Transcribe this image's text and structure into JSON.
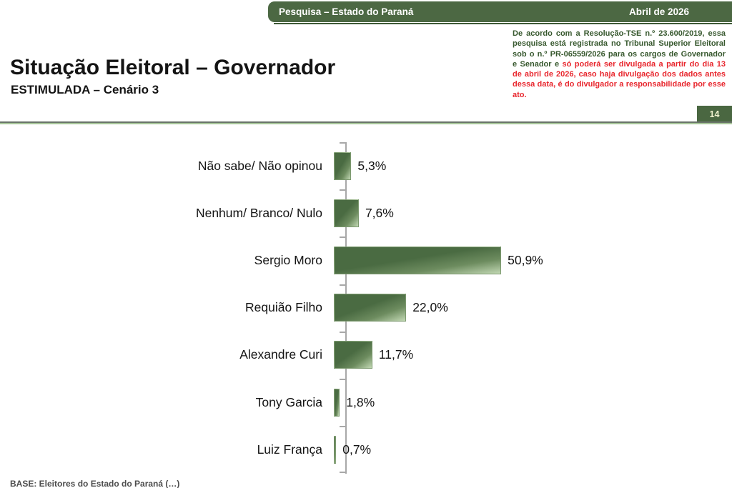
{
  "header": {
    "bar_title": "Pesquisa – Estado do Paraná",
    "bar_date": "Abril de 2026"
  },
  "title": {
    "main": "Situação Eleitoral – Governador",
    "subtitle": "ESTIMULADA – Cenário 3"
  },
  "disclaimer": {
    "green_part": "De acordo com a Resolução-TSE n.º 23.600/2019, essa pesquisa está registrada no Tribunal Superior Eleitoral sob o n.º PR-06559/2026 para os cargos de Governador e Senador e ",
    "red_part": "só poderá ser divulgada a partir do dia 13 de abril de 2026, caso haja divulgação dos dados antes dessa data, é do divulgador a responsabilidade por esse ato."
  },
  "page_number": "14",
  "footer": {
    "base_note": "BASE: Eleitores do Estado do Paraná (…)"
  },
  "chart_data": {
    "type": "bar",
    "orientation": "horizontal",
    "title": "",
    "xlabel": "",
    "ylabel": "",
    "xlim": [
      0,
      55
    ],
    "grid": false,
    "legend": false,
    "categories": [
      "Não sabe/ Não opinou",
      "Nenhum/ Branco/ Nulo",
      "Sergio Moro",
      "Requião Filho",
      "Alexandre Curi",
      "Tony Garcia",
      "Luiz França"
    ],
    "values": [
      5.3,
      7.6,
      50.9,
      22.0,
      11.7,
      1.8,
      0.7
    ],
    "value_labels": [
      "5,3%",
      "7,6%",
      "50,9%",
      "22,0%",
      "11,7%",
      "1,8%",
      "0,7%"
    ]
  },
  "colors": {
    "header_green": "#4c6843",
    "disclaimer_green": "#37582e",
    "alert_red": "#e8262d",
    "bar_dark_green": "#4a6b42",
    "bar_light_green": "#c2d8b4",
    "page_box_bg": "#4a6741",
    "page_box_text": "#eef0cc",
    "axis_gray": "#a8a8a8"
  }
}
